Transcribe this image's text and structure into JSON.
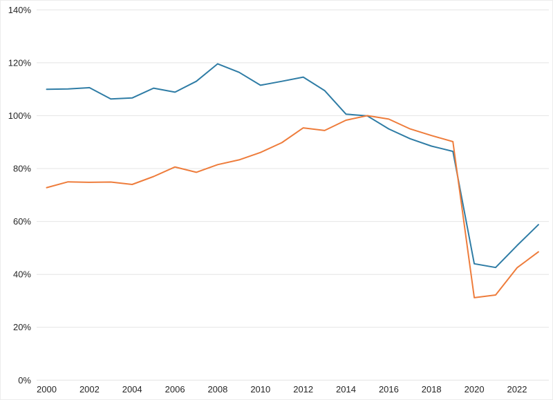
{
  "chart_data": {
    "type": "line",
    "title": "",
    "xlabel": "",
    "ylabel": "",
    "x": [
      2000,
      2001,
      2002,
      2003,
      2004,
      2005,
      2006,
      2007,
      2008,
      2009,
      2010,
      2011,
      2012,
      2013,
      2014,
      2015,
      2016,
      2017,
      2018,
      2019,
      2020,
      2021,
      2022,
      2023
    ],
    "series": [
      {
        "name": "blue-series",
        "color": "#2e7ca5",
        "values": [
          110.0,
          110.1,
          110.6,
          106.3,
          106.7,
          110.4,
          108.9,
          113.0,
          119.6,
          116.4,
          111.5,
          113.0,
          114.6,
          109.5,
          100.6,
          99.9,
          95.0,
          91.3,
          88.5,
          86.5,
          44.0,
          42.6,
          50.9,
          58.8
        ]
      },
      {
        "name": "orange-series",
        "color": "#ee7c3b",
        "values": [
          72.8,
          75.0,
          74.8,
          74.9,
          74.0,
          77.0,
          80.6,
          78.6,
          81.5,
          83.3,
          86.1,
          89.8,
          95.4,
          94.4,
          98.3,
          100.0,
          98.7,
          95.0,
          92.5,
          90.2,
          31.2,
          32.2,
          42.5,
          48.5
        ]
      }
    ],
    "ylim": [
      0,
      140
    ],
    "y_tick_values": [
      0,
      20,
      40,
      60,
      80,
      100,
      120,
      140
    ],
    "y_tick_labels": [
      "0%",
      "20%",
      "40%",
      "60%",
      "80%",
      "100%",
      "120%",
      "140%"
    ],
    "x_tick_years": [
      2000,
      2002,
      2004,
      2006,
      2008,
      2010,
      2012,
      2014,
      2016,
      2018,
      2020,
      2022
    ],
    "x_tick_labels": [
      "2000",
      "2002",
      "2004",
      "2006",
      "2008",
      "2010",
      "2012",
      "2014",
      "2016",
      "2018",
      "2020",
      "2022"
    ],
    "legend": "none",
    "grid": "horizontal",
    "gridline_color": "#e4e4e4",
    "axis_text_color": "#262626",
    "background_color": "#ffffff"
  }
}
